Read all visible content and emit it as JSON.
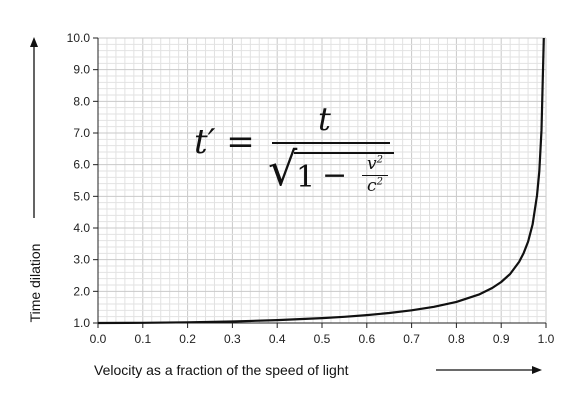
{
  "chart_data": {
    "type": "line",
    "title": "",
    "xlabel": "Velocity as a fraction of the speed of light",
    "ylabel": "Time dilation",
    "xlim": [
      0.0,
      1.0
    ],
    "ylim": [
      1.0,
      10.0
    ],
    "x_ticks": [
      "0.0",
      "0.1",
      "0.2",
      "0.3",
      "0.4",
      "0.5",
      "0.6",
      "0.7",
      "0.8",
      "0.9",
      "1.0"
    ],
    "y_ticks": [
      "1.0",
      "2.0",
      "3.0",
      "4.0",
      "5.0",
      "6.0",
      "7.0",
      "8.0",
      "9.0",
      "10.0"
    ],
    "grid": true,
    "series": [
      {
        "x": [
          0.0,
          0.1,
          0.2,
          0.3,
          0.4,
          0.5,
          0.55,
          0.6,
          0.65,
          0.7,
          0.75,
          0.8,
          0.85,
          0.88,
          0.9,
          0.92,
          0.94,
          0.95,
          0.96,
          0.97,
          0.98,
          0.985,
          0.99,
          0.995
        ],
        "values": [
          1.0,
          1.005,
          1.021,
          1.048,
          1.091,
          1.155,
          1.197,
          1.25,
          1.316,
          1.4,
          1.512,
          1.667,
          1.898,
          2.105,
          2.294,
          2.552,
          2.931,
          3.203,
          3.571,
          4.113,
          5.025,
          5.783,
          7.089,
          10.0
        ]
      }
    ],
    "annotation": {
      "lhs": "t′ =",
      "numerator": "t",
      "one": "1",
      "minus": "−",
      "v_sq": "v",
      "c_sq": "c",
      "exponent": "2"
    },
    "colors": {
      "grid_minor": "#e2e2e2",
      "grid_major": "#c9c9c9",
      "line": "#111111",
      "axis": "#222222"
    }
  }
}
